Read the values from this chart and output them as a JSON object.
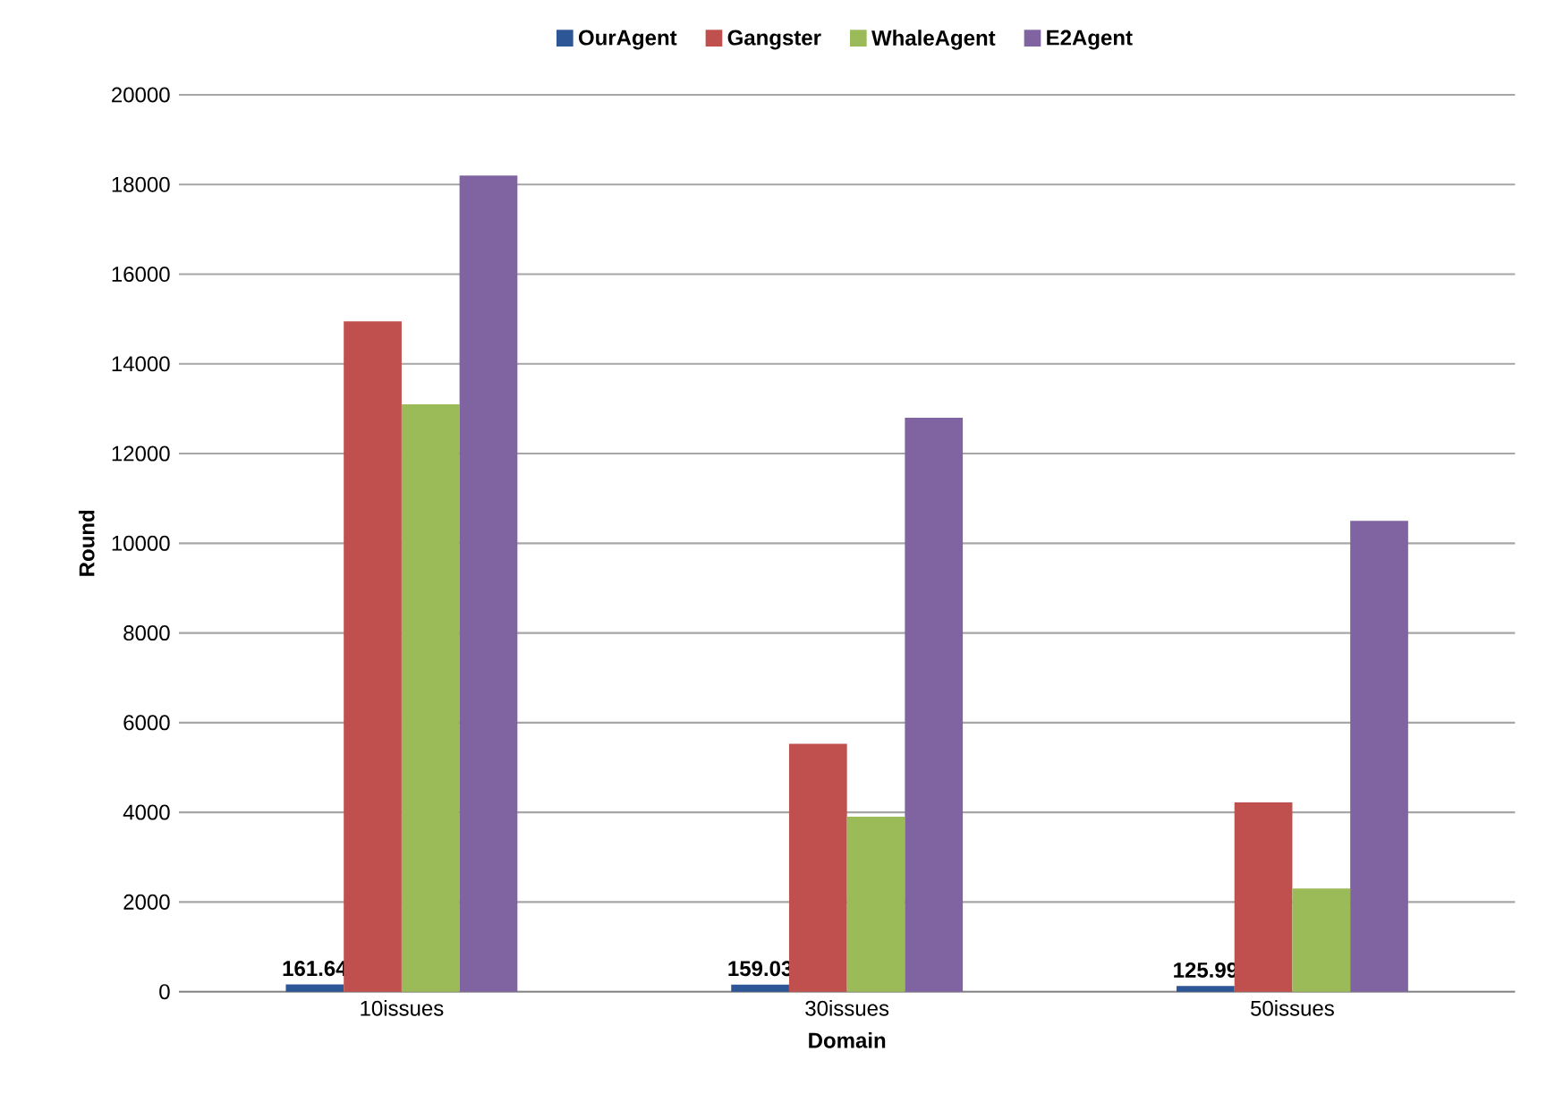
{
  "chart_data": {
    "type": "bar",
    "xlabel": "Domain",
    "ylabel": "Round",
    "categories": [
      "10issues",
      "30issues",
      "50issues"
    ],
    "series": [
      {
        "name": "OurAgent",
        "color": "#2c5696",
        "values": [
          161.64,
          159.03,
          125.99
        ],
        "value_labels": [
          "161.64",
          "159.03",
          "125.99"
        ]
      },
      {
        "name": "Gangster",
        "color": "#c0504d",
        "values": [
          14950,
          5530,
          4220
        ]
      },
      {
        "name": "WhaleAgent",
        "color": "#9bbb59",
        "values": [
          13100,
          3900,
          2300
        ]
      },
      {
        "name": "E2Agent",
        "color": "#8064a2",
        "values": [
          18200,
          12800,
          10500
        ]
      }
    ],
    "ylim": [
      0,
      20000
    ],
    "yticks": [
      0,
      2000,
      4000,
      6000,
      8000,
      10000,
      12000,
      14000,
      16000,
      18000,
      20000
    ],
    "grid": "y",
    "legend": "top"
  }
}
